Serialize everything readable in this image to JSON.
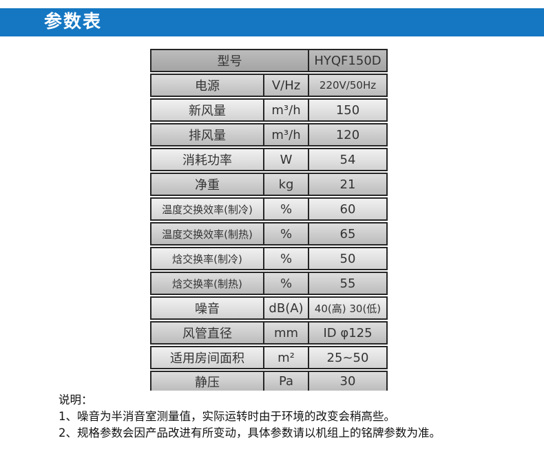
{
  "banner": {
    "title": "参数表",
    "color": "#1577c2"
  },
  "table": {
    "model_label": "型号",
    "model_value": "HYQF150D",
    "rows": [
      {
        "label": "电源",
        "unit": "V/Hz",
        "value": "220V/50Hz",
        "shade": "medium"
      },
      {
        "label": "新风量",
        "unit": "m³/h",
        "value": "150",
        "shade": "light"
      },
      {
        "label": "排风量",
        "unit": "m³/h",
        "value": "120",
        "shade": "medium"
      },
      {
        "label": "消耗功率",
        "unit": "W",
        "value": "54",
        "shade": "light"
      },
      {
        "label": "净重",
        "unit": "kg",
        "value": "21",
        "shade": "medium"
      },
      {
        "label": "温度交换效率(制冷)",
        "unit": "%",
        "value": "60",
        "shade": "light"
      },
      {
        "label": "温度交换效率(制热)",
        "unit": "%",
        "value": "65",
        "shade": "medium"
      },
      {
        "label": "焓交换率(制冷)",
        "unit": "%",
        "value": "50",
        "shade": "light"
      },
      {
        "label": "焓交换率(制热)",
        "unit": "%",
        "value": "55",
        "shade": "medium"
      },
      {
        "label": "噪音",
        "unit": "dB(A)",
        "value": "40(高) 30(低)",
        "shade": "light"
      },
      {
        "label": "风管直径",
        "unit": "mm",
        "value": "ID φ125",
        "shade": "medium"
      },
      {
        "label": "适用房间面积",
        "unit": "m²",
        "value": "25~50",
        "shade": "light"
      },
      {
        "label": "静压",
        "unit": "Pa",
        "value": "30",
        "shade": "medium"
      }
    ]
  },
  "notes": {
    "heading": "说明：",
    "items": [
      "1、噪音为半消音室测量值，实际运转时由于环境的改变会稍高些。",
      "2、规格参数会因产品改进有所变动，具体参数请以机组上的铭牌参数为准。"
    ]
  }
}
